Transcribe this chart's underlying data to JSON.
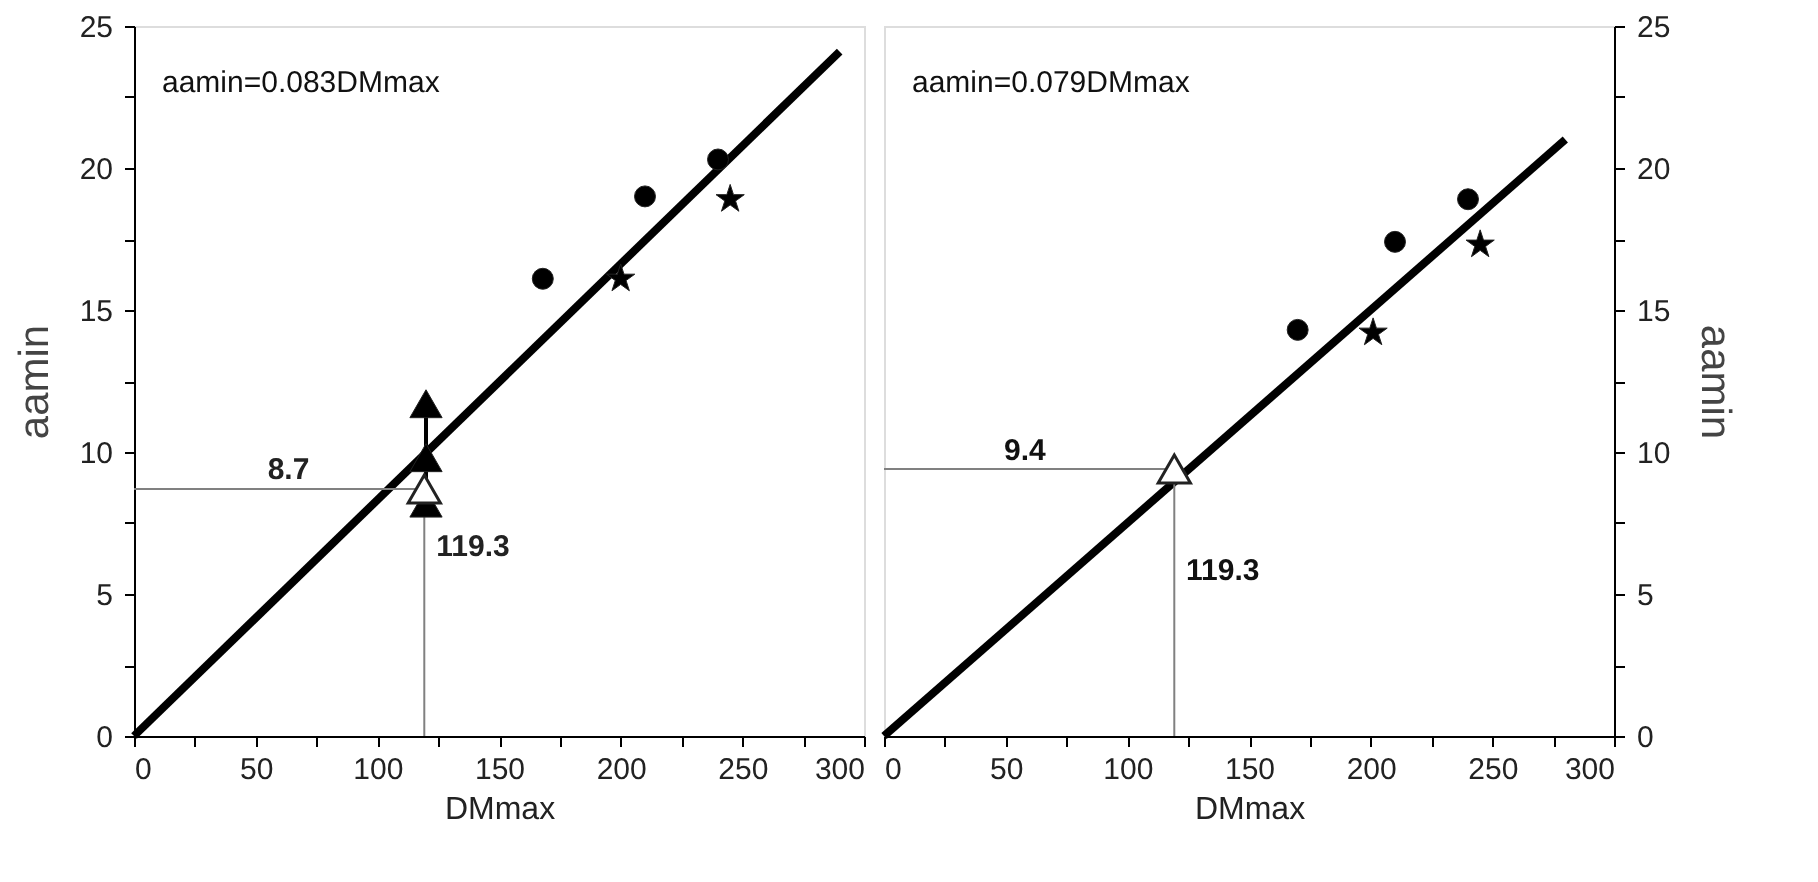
{
  "chart_data": [
    {
      "type": "scatter",
      "xlabel": "DMmax",
      "ylabel": "aamin",
      "xlim": [
        0,
        300
      ],
      "ylim": [
        0,
        25
      ],
      "xticks": [
        0,
        {
          "value": 25,
          "label": null
        },
        50,
        {
          "value": 75,
          "label": null
        },
        100,
        {
          "value": 125,
          "label": null
        },
        150,
        {
          "value": 175,
          "label": null
        },
        200,
        {
          "value": 225,
          "label": null
        },
        250,
        {
          "value": 275,
          "label": null
        },
        300
      ],
      "yticks": [
        0,
        {
          "value": 2.5,
          "label": null
        },
        5,
        {
          "value": 7.5,
          "label": null
        },
        10,
        {
          "value": 12.5,
          "label": null
        },
        15,
        {
          "value": 17.5,
          "label": null
        },
        20,
        {
          "value": 22.5,
          "label": null
        },
        25
      ],
      "annotations": [
        "aamin=0.083DMmax",
        {
          "text": "8.7",
          "x": 50,
          "y": 8.7
        },
        {
          "text": "119.3",
          "x": 119.3,
          "y": 6
        }
      ],
      "series": [
        {
          "type": "line",
          "color": "#000000",
          "marker": "none",
          "x": [
            0,
            290
          ],
          "values": [
            0,
            24.1
          ]
        },
        {
          "type": "line",
          "color": "#808080",
          "marker": "none",
          "x": [
            0,
            119.3,
            119.3
          ],
          "values": [
            8.7,
            8.7,
            0
          ]
        },
        {
          "color": "#000000",
          "marker": "circle",
          "x": [
            168,
            210,
            240
          ],
          "values": [
            16.1,
            19,
            20.3
          ]
        },
        {
          "color": "#000000",
          "marker": "star",
          "x": [
            200,
            245
          ],
          "values": [
            16.1,
            18.9
          ]
        },
        {
          "type": "line",
          "color": "#000000",
          "marker": "triangle",
          "x": [
            120,
            120,
            120
          ],
          "values": [
            8.2,
            9.8,
            11.7
          ]
        },
        {
          "color": "#ffffff",
          "marker": "triangle",
          "x": [
            119.3
          ],
          "values": [
            8.7
          ]
        }
      ]
    },
    {
      "type": "scatter",
      "xlabel": "DMmax",
      "y2label": "aamin",
      "xlim": [
        0,
        300
      ],
      "y2lim": [
        0,
        25
      ],
      "xticks": [
        0,
        {
          "value": 25,
          "label": null
        },
        50,
        {
          "value": 75,
          "label": null
        },
        100,
        {
          "value": 125,
          "label": null
        },
        150,
        {
          "value": 175,
          "label": null
        },
        200,
        {
          "value": 225,
          "label": null
        },
        250,
        {
          "value": 275,
          "label": null
        },
        300
      ],
      "y2ticks": [
        0,
        {
          "value": 2.5,
          "label": null
        },
        5,
        {
          "value": 7.5,
          "label": null
        },
        10,
        {
          "value": 12.5,
          "label": null
        },
        15,
        {
          "value": 17.5,
          "label": null
        },
        20,
        {
          "value": 22.5,
          "label": null
        },
        25
      ],
      "annotations": [
        "aamin=0.079DMmax",
        "9.4",
        "119.3"
      ],
      "series": [
        {
          "type": "line",
          "axis": "y2",
          "color": "#000000",
          "marker": "none",
          "x": [
            0,
            280
          ],
          "values": [
            0,
            21
          ]
        },
        {
          "type": "line",
          "axis": "y2",
          "color": "#808080",
          "marker": "none",
          "x": [
            0,
            119.3,
            119.3
          ],
          "values": [
            9.4,
            9.4,
            0
          ]
        },
        {
          "axis": "y2",
          "color": "#000000",
          "marker": "circle",
          "x": [
            170,
            210,
            240
          ],
          "values": [
            14.3,
            17.4,
            18.9
          ]
        },
        {
          "axis": "y2",
          "color": "#000000",
          "marker": "star",
          "x": [
            201,
            245
          ],
          "values": [
            14.2,
            17.3
          ]
        },
        {
          "axis": "y2",
          "color": "#ffffff",
          "marker": "triangle",
          "x": [
            119.3
          ],
          "values": [
            9.4
          ]
        }
      ]
    }
  ]
}
